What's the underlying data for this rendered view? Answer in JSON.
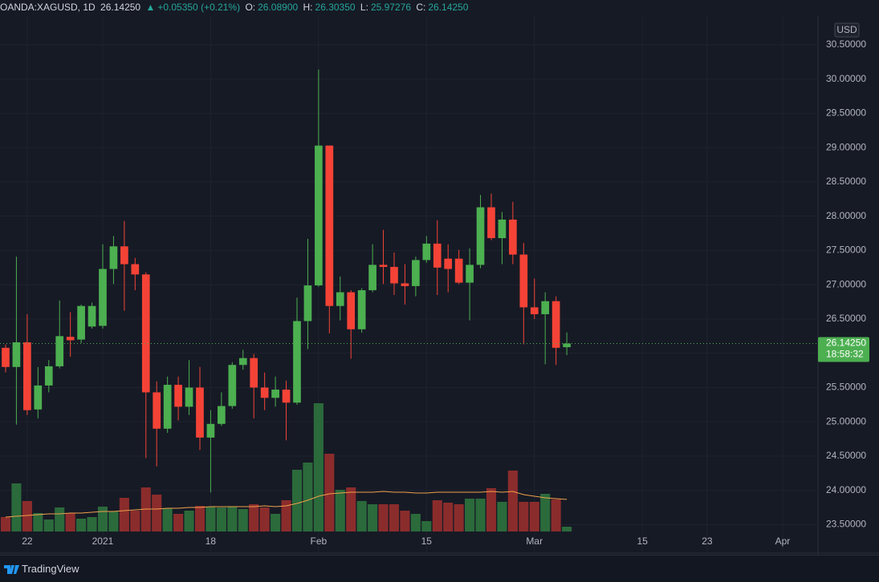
{
  "header": {
    "symbol": "OANDA:XAGUSD, 1D",
    "last": "26.14250",
    "change": "+0.05350 (+0.21%)",
    "o_label": "O:",
    "o_value": "26.08900",
    "h_label": "H:",
    "h_value": "26.30350",
    "l_label": "L:",
    "l_value": "25.97276",
    "c_label": "C:",
    "c_value": "26.14250"
  },
  "chart_data": {
    "type": "candlestick",
    "currency": "USD",
    "open": [
      26.08,
      25.8,
      26.16,
      25.18,
      25.53,
      25.81,
      26.24,
      26.2,
      26.39,
      26.4,
      27.23,
      27.56,
      27.3,
      27.15,
      25.43,
      24.9,
      25.54,
      25.22,
      25.5,
      24.77,
      24.97,
      25.23,
      25.83,
      25.93,
      25.5,
      25.35,
      25.47,
      25.28,
      26.47,
      26.99,
      29.03,
      26.69,
      26.89,
      26.35,
      26.92,
      27.29,
      27.26,
      27.02,
      26.98,
      27.36,
      27.6,
      27.38,
      27.38,
      27.03,
      27.29,
      28.13,
      27.68,
      27.95,
      27.44,
      26.67,
      26.57,
      26.76,
      26.089
    ],
    "high": [
      26.13,
      27.41,
      26.57,
      25.8,
      25.9,
      26.77,
      26.6,
      26.71,
      26.74,
      27.59,
      27.71,
      27.93,
      27.39,
      27.18,
      25.59,
      25.66,
      25.66,
      25.9,
      25.8,
      25.17,
      25.43,
      25.87,
      26.05,
      25.99,
      25.72,
      25.66,
      25.6,
      26.81,
      27.67,
      30.14,
      29.03,
      27.12,
      26.92,
      26.95,
      27.59,
      27.8,
      27.47,
      27.3,
      27.41,
      27.71,
      27.94,
      27.59,
      27.51,
      27.53,
      28.31,
      28.33,
      28.06,
      28.21,
      27.61,
      27.09,
      26.89,
      26.83,
      26.3035
    ],
    "low": [
      25.72,
      24.96,
      25.1,
      25.05,
      25.43,
      25.78,
      25.95,
      26.15,
      26.36,
      26.36,
      27.01,
      26.62,
      26.92,
      24.47,
      24.35,
      24.84,
      25.02,
      25.1,
      24.59,
      23.97,
      24.94,
      25.19,
      25.76,
      25.05,
      25.17,
      25.22,
      24.73,
      25.25,
      26.06,
      26.97,
      26.29,
      26.48,
      25.92,
      26.3,
      26.89,
      27.01,
      26.85,
      26.71,
      26.83,
      27.32,
      26.85,
      26.89,
      27.01,
      26.48,
      27.24,
      27.65,
      27.3,
      27.3,
      26.13,
      26.5,
      25.84,
      25.83,
      25.97276
    ],
    "close": [
      25.8,
      26.16,
      25.17,
      25.53,
      25.81,
      26.25,
      26.19,
      26.69,
      26.69,
      27.23,
      27.56,
      27.3,
      27.15,
      25.43,
      24.9,
      25.54,
      25.22,
      25.5,
      24.77,
      24.97,
      25.23,
      25.83,
      25.93,
      25.5,
      25.35,
      25.47,
      25.28,
      26.47,
      26.99,
      29.03,
      26.69,
      26.89,
      26.35,
      26.92,
      27.29,
      27.26,
      27.02,
      26.98,
      27.36,
      27.6,
      27.25,
      27.23,
      27.03,
      27.29,
      28.13,
      27.68,
      27.95,
      27.44,
      26.67,
      26.57,
      26.76,
      26.08,
      26.1425
    ],
    "volume": [
      18,
      60,
      38,
      23,
      15,
      30,
      23,
      16,
      18,
      31,
      25,
      42,
      26,
      55,
      46,
      29,
      22,
      26,
      32,
      31,
      30,
      31,
      28,
      34,
      30,
      22,
      39,
      77,
      86,
      160,
      97,
      52,
      55,
      38,
      34,
      34,
      34,
      26,
      22,
      13,
      39,
      36,
      34,
      41,
      41,
      54,
      37,
      76,
      37,
      37,
      47,
      40,
      6
    ],
    "volume_ma": [
      18,
      19,
      20,
      21,
      22,
      22,
      23,
      23,
      24,
      25,
      25,
      26,
      27,
      28,
      28,
      29,
      29,
      30,
      30,
      31,
      31,
      31,
      31,
      31,
      32,
      31,
      32,
      35,
      39,
      44,
      47,
      48,
      49,
      49,
      49,
      50,
      49,
      49,
      48,
      48,
      49,
      49,
      49,
      49,
      49,
      50,
      49,
      50,
      46,
      44,
      42,
      41,
      40
    ],
    "vlim": [
      0,
      643
    ],
    "ylim": [
      23.4,
      30.92
    ],
    "yticks": [
      {
        "value": 23.5,
        "label": "23.50000"
      },
      {
        "value": 24,
        "label": "24.00000"
      },
      {
        "value": 24.5,
        "label": "24.50000"
      },
      {
        "value": 25,
        "label": "25.00000"
      },
      {
        "value": 25.5,
        "label": "25.50000"
      },
      {
        "value": 26,
        "label": "26.00000"
      },
      {
        "value": 26.5,
        "label": "26.50000"
      },
      {
        "value": 27,
        "label": "27.00000"
      },
      {
        "value": 27.5,
        "label": "27.50000"
      },
      {
        "value": 28,
        "label": "28.00000"
      },
      {
        "value": 28.5,
        "label": "28.50000"
      },
      {
        "value": 29,
        "label": "29.00000"
      },
      {
        "value": 29.5,
        "label": "29.50000"
      },
      {
        "value": 30,
        "label": "30.00000"
      },
      {
        "value": 30.5,
        "label": "30.50000"
      }
    ],
    "xlim": [
      -0.52,
      75.2
    ],
    "xticks": [
      {
        "value": 2,
        "label": "22"
      },
      {
        "value": 9,
        "label": "2021"
      },
      {
        "value": 19,
        "label": "18"
      },
      {
        "value": 29,
        "label": "Feb"
      },
      {
        "value": 39,
        "label": "15"
      },
      {
        "value": 49,
        "label": "Mar"
      },
      {
        "value": 59,
        "label": "15"
      },
      {
        "value": 65,
        "label": "23"
      },
      {
        "value": 72,
        "label": "Apr"
      }
    ],
    "last_price": {
      "value": 26.1425,
      "label": "26.14250"
    },
    "countdown": "18:58:32",
    "up_color": "#4caf50",
    "down_color": "#f44336",
    "volume_up_color": "#2b6a3b",
    "volume_down_color": "#8b2c2c",
    "ma_color": "#f0a04b",
    "grid": true
  },
  "footer": {
    "brand": "TradingView"
  }
}
